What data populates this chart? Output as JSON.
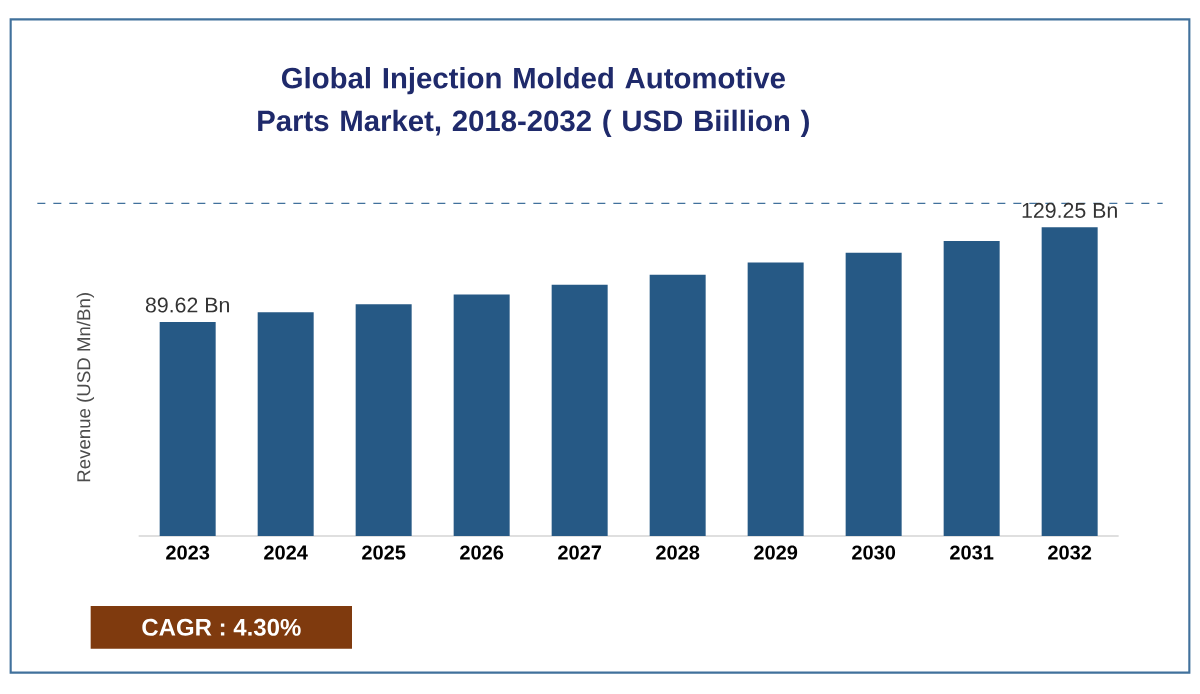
{
  "chart_data": {
    "type": "bar",
    "title": "Global Injection Molded Automotive Parts Market, 2018-2032 ( USD Biillion )",
    "ylabel": "Revenue (USD Mn/Bn)",
    "categories": [
      "2023",
      "2024",
      "2025",
      "2026",
      "2027",
      "2028",
      "2029",
      "2030",
      "2031",
      "2032"
    ],
    "values": [
      89.62,
      93.7,
      97.0,
      101.1,
      105.2,
      109.4,
      114.5,
      118.6,
      123.5,
      129.25
    ],
    "value_labels": [
      "89.62 Bn",
      null,
      null,
      null,
      null,
      null,
      null,
      null,
      null,
      "129.25 Bn"
    ],
    "color": "#265985",
    "annotations": [
      "CAGR : 4.30%"
    ]
  }
}
